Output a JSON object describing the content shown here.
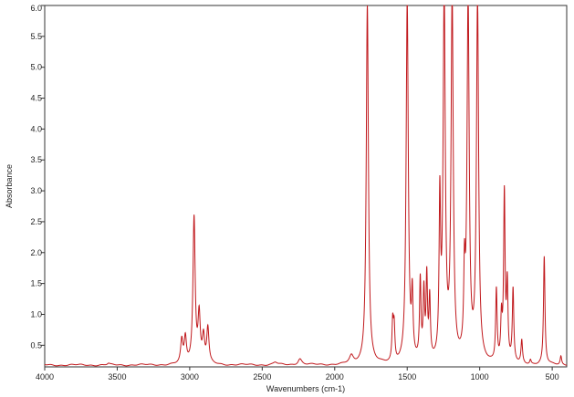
{
  "chart_data": {
    "type": "line",
    "xlabel": "Wavenumbers (cm-1)",
    "ylabel": "Absorbance",
    "xlim": [
      4000,
      400
    ],
    "ylim": [
      0.15,
      6.0
    ],
    "x_reversed": true,
    "x_ticks": [
      4000,
      3500,
      3000,
      2500,
      2000,
      1500,
      1000,
      500
    ],
    "y_ticks": [
      0.5,
      1.0,
      1.5,
      2.0,
      2.5,
      3.0,
      3.5,
      4.0,
      4.5,
      5.0,
      5.5,
      6.0
    ],
    "y_tick_labels": [
      "0.5",
      "1.0",
      "1.5",
      "2.0",
      "2.5",
      "3.0",
      "3.5",
      "4.0",
      "4.5",
      "5.0",
      "5.5",
      "6.0"
    ],
    "grid": false,
    "line_color": "#c0181c",
    "baseline": 0.18,
    "series": [
      {
        "peaks": [
          {
            "x": 3560,
            "y": 0.2
          },
          {
            "x": 3055,
            "y": 0.55
          },
          {
            "x": 3030,
            "y": 0.6
          },
          {
            "x": 2970,
            "y": 2.55
          },
          {
            "x": 2935,
            "y": 0.95
          },
          {
            "x": 2905,
            "y": 0.6
          },
          {
            "x": 2875,
            "y": 0.75
          },
          {
            "x": 2410,
            "y": 0.22
          },
          {
            "x": 2240,
            "y": 0.28
          },
          {
            "x": 1885,
            "y": 0.3
          },
          {
            "x": 1775,
            "y": 6.0
          },
          {
            "x": 1600,
            "y": 0.8
          },
          {
            "x": 1590,
            "y": 0.72
          },
          {
            "x": 1500,
            "y": 6.0
          },
          {
            "x": 1465,
            "y": 1.15
          },
          {
            "x": 1410,
            "y": 1.45
          },
          {
            "x": 1385,
            "y": 1.25
          },
          {
            "x": 1365,
            "y": 1.5
          },
          {
            "x": 1345,
            "y": 1.15
          },
          {
            "x": 1275,
            "y": 2.65
          },
          {
            "x": 1245,
            "y": 6.0
          },
          {
            "x": 1190,
            "y": 6.0
          },
          {
            "x": 1105,
            "y": 1.4
          },
          {
            "x": 1080,
            "y": 6.0
          },
          {
            "x": 1015,
            "y": 6.0
          },
          {
            "x": 885,
            "y": 1.35
          },
          {
            "x": 850,
            "y": 0.85
          },
          {
            "x": 830,
            "y": 2.88
          },
          {
            "x": 810,
            "y": 1.4
          },
          {
            "x": 770,
            "y": 1.35
          },
          {
            "x": 710,
            "y": 0.55
          },
          {
            "x": 650,
            "y": 0.25
          },
          {
            "x": 555,
            "y": 1.92
          },
          {
            "x": 440,
            "y": 0.32
          }
        ]
      }
    ]
  }
}
